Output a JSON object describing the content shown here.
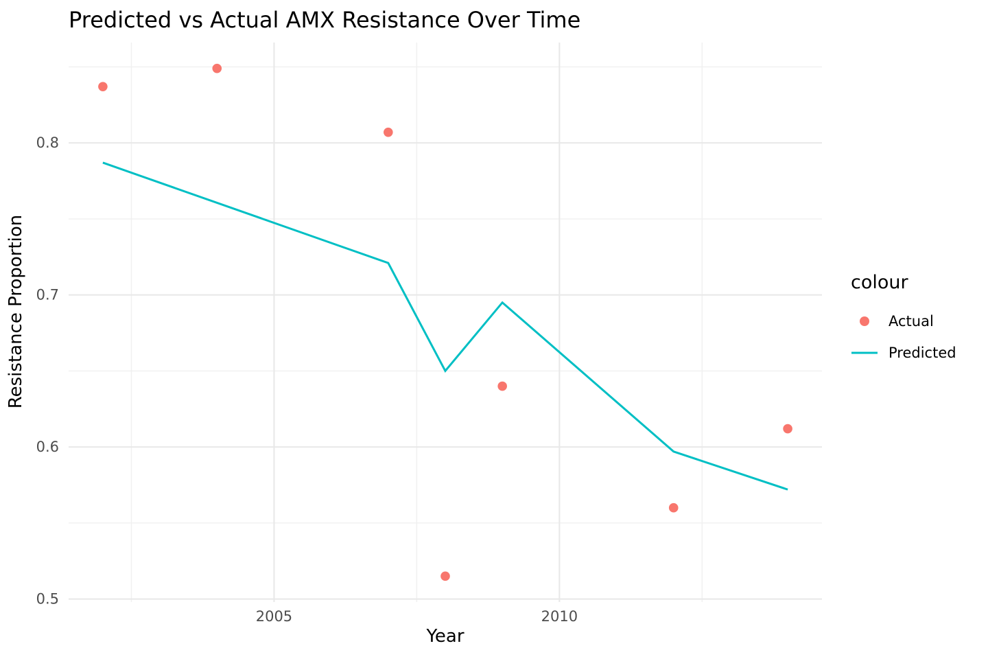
{
  "chart_data": {
    "type": "scatter",
    "title": "Predicted vs Actual AMX Resistance Over Time",
    "xlabel": "Year",
    "ylabel": "Resistance Proportion",
    "x_domain": [
      2001.4,
      2014.6
    ],
    "y_domain": [
      0.498,
      0.866
    ],
    "x_major_ticks": [
      {
        "value": 2005,
        "label": "2005"
      },
      {
        "value": 2010,
        "label": "2010"
      }
    ],
    "x_minor_ticks": [
      2002.5,
      2007.5,
      2012.5
    ],
    "y_major_ticks": [
      {
        "value": 0.5,
        "label": "0.5"
      },
      {
        "value": 0.6,
        "label": "0.6"
      },
      {
        "value": 0.7,
        "label": "0.7"
      },
      {
        "value": 0.8,
        "label": "0.8"
      }
    ],
    "y_minor_ticks": [
      0.55,
      0.65,
      0.75,
      0.85
    ],
    "grid": {
      "major_color": "#e8e8e8",
      "minor_color": "#f0f0f0",
      "background": "#ffffff"
    },
    "series": [
      {
        "name": "Actual",
        "geom": "point",
        "color": "#F8766D",
        "points": [
          {
            "x": 2002,
            "y": 0.837
          },
          {
            "x": 2004,
            "y": 0.849
          },
          {
            "x": 2007,
            "y": 0.807
          },
          {
            "x": 2008,
            "y": 0.515
          },
          {
            "x": 2009,
            "y": 0.64
          },
          {
            "x": 2012,
            "y": 0.56
          },
          {
            "x": 2014,
            "y": 0.612
          }
        ]
      },
      {
        "name": "Predicted",
        "geom": "line",
        "color": "#00BFC4",
        "points": [
          {
            "x": 2002,
            "y": 0.787
          },
          {
            "x": 2007,
            "y": 0.721
          },
          {
            "x": 2008,
            "y": 0.65
          },
          {
            "x": 2009,
            "y": 0.695
          },
          {
            "x": 2012,
            "y": 0.597
          },
          {
            "x": 2014,
            "y": 0.572
          }
        ]
      }
    ],
    "legend": {
      "title": "colour",
      "position": "right",
      "entries": [
        {
          "label": "Actual",
          "marker": "point",
          "color": "#F8766D"
        },
        {
          "label": "Predicted",
          "marker": "line",
          "color": "#00BFC4"
        }
      ]
    }
  }
}
